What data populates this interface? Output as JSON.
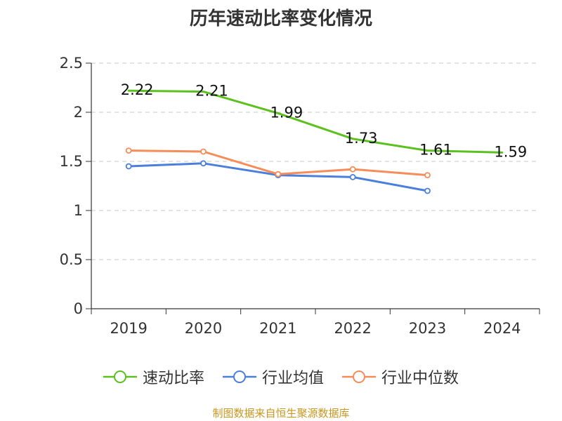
{
  "title": "历年速动比率变化情况",
  "source": "制图数据来自恒生聚源数据库",
  "chart_data": {
    "type": "line",
    "title": "历年速动比率变化情况",
    "categories": [
      "2019",
      "2020",
      "2021",
      "2022",
      "2023",
      "2024"
    ],
    "ylim": [
      0,
      2.5
    ],
    "yticks": [
      0,
      0.5,
      1,
      1.5,
      2,
      2.5
    ],
    "ytick_labels": [
      "0",
      "0.5",
      "1",
      "1.5",
      "2",
      "2.5"
    ],
    "grid": true,
    "legend_position": "bottom",
    "series": [
      {
        "name": "速动比率",
        "color": "#5cc11f",
        "values": [
          2.22,
          2.21,
          1.99,
          1.73,
          1.61,
          1.59
        ],
        "labels": [
          "2.22",
          "2.21",
          "1.99",
          "1.73",
          "1.61",
          "1.59"
        ],
        "show_labels": true,
        "markers": false
      },
      {
        "name": "行业均值",
        "color": "#4a7fdc",
        "values": [
          1.45,
          1.48,
          1.36,
          1.34,
          1.2,
          null
        ],
        "show_labels": false,
        "markers": true
      },
      {
        "name": "行业中位数",
        "color": "#f58c5a",
        "values": [
          1.61,
          1.6,
          1.37,
          1.42,
          1.36,
          null
        ],
        "show_labels": false,
        "markers": true
      }
    ]
  }
}
